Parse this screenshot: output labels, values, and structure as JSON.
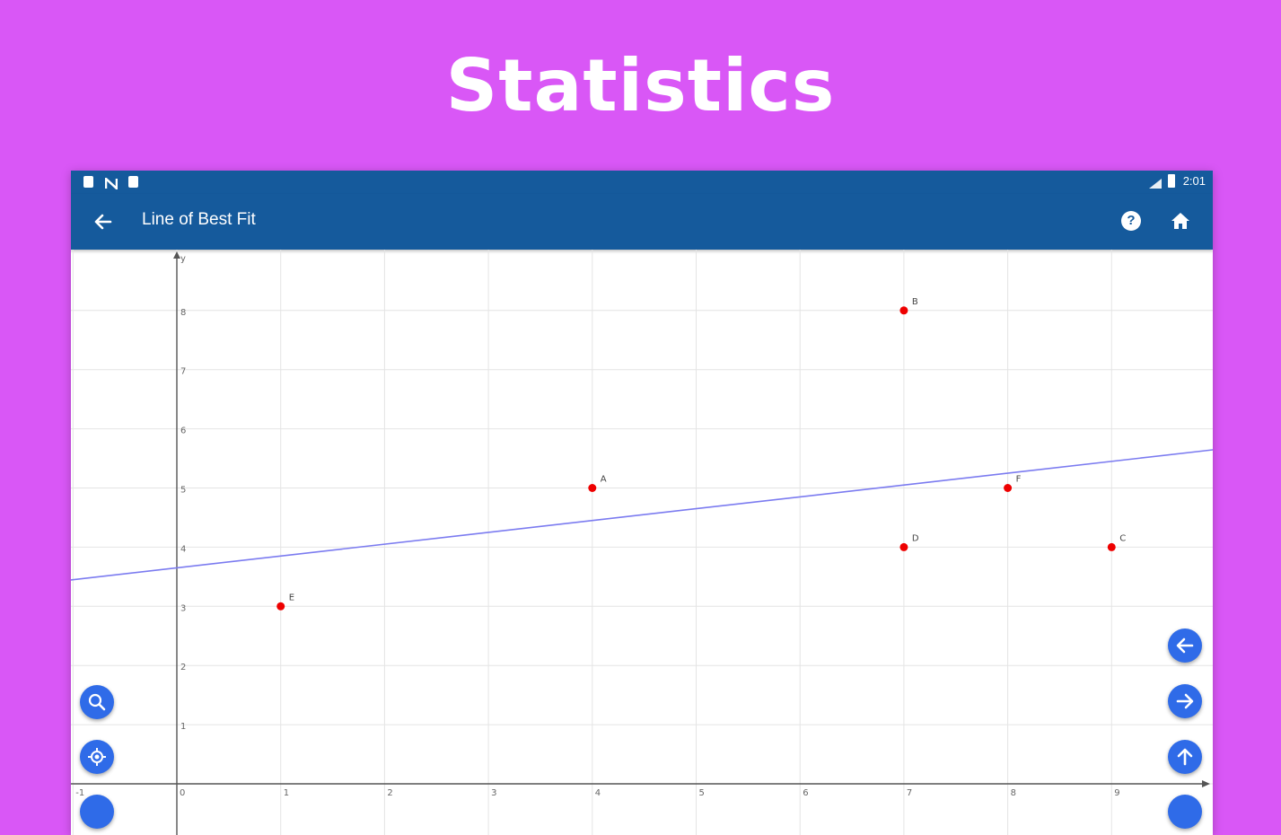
{
  "headline": "Statistics",
  "status_bar": {
    "time": "2:01"
  },
  "app_bar": {
    "title": "Line of Best Fit",
    "help_glyph": "?"
  },
  "colors": {
    "background": "#d957f6",
    "app_bar": "#155a9c",
    "point": "#ee0000",
    "fit_line": "#7b7bf0",
    "fab": "#2f6be8"
  },
  "chart_data": {
    "type": "scatter",
    "xlim": [
      -1,
      10
    ],
    "ylim": [
      0,
      9
    ],
    "grid": true,
    "x_ticks": [
      "-1",
      "0",
      "1",
      "2",
      "3",
      "4",
      "5",
      "6",
      "7",
      "8",
      "9"
    ],
    "y_ticks": [
      "1",
      "2",
      "3",
      "4",
      "5",
      "6",
      "7",
      "8"
    ],
    "y_axis_label": "y",
    "points": [
      {
        "label": "A",
        "x": 4,
        "y": 5
      },
      {
        "label": "B",
        "x": 7,
        "y": 8
      },
      {
        "label": "C",
        "x": 9,
        "y": 4
      },
      {
        "label": "D",
        "x": 7,
        "y": 4
      },
      {
        "label": "E",
        "x": 1,
        "y": 3
      },
      {
        "label": "F",
        "x": 8,
        "y": 5
      }
    ],
    "fit_line": {
      "slope": 0.2,
      "intercept": 3.65
    }
  },
  "icons": {
    "status": [
      "sd-card-icon",
      "n-icon",
      "battery-saver-icon"
    ],
    "left_fabs": [
      "zoom-in-icon",
      "recenter-icon"
    ],
    "right_fabs": [
      "arrow-left-icon",
      "arrow-right-icon",
      "arrow-up-icon"
    ]
  }
}
